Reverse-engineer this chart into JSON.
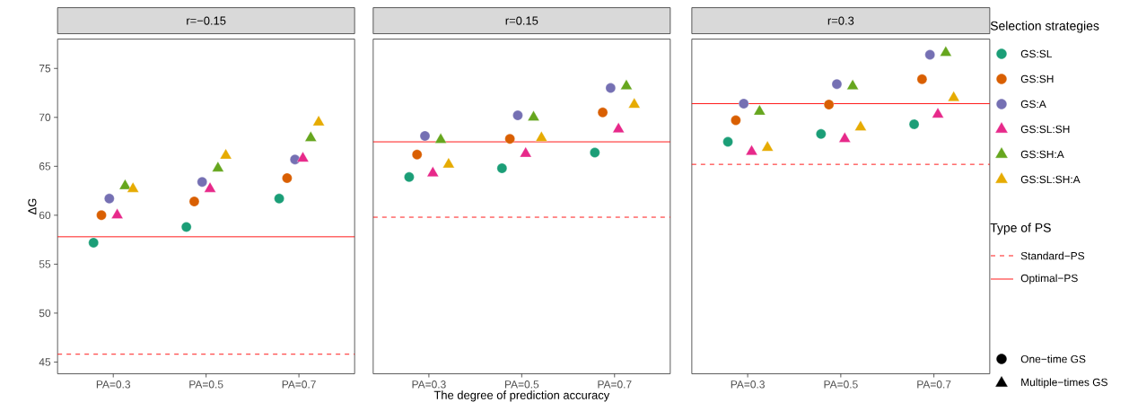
{
  "chart_data": [
    {
      "type": "scatter",
      "title": "r=−0.15",
      "ylabel": "ΔG",
      "categories": [
        "PA=0.3",
        "PA=0.5",
        "PA=0.7"
      ],
      "ylim": [
        43.8,
        78
      ],
      "yticks": [
        45,
        50,
        55,
        60,
        65,
        70,
        75
      ],
      "series": [
        {
          "color": "#1b9e77",
          "marker": "circle",
          "values": [
            57.2,
            58.8,
            61.7
          ]
        },
        {
          "color": "#d95f02",
          "marker": "circle",
          "values": [
            60.0,
            61.4,
            63.8
          ]
        },
        {
          "color": "#7570b3",
          "marker": "circle",
          "values": [
            61.7,
            63.4,
            65.7
          ]
        },
        {
          "color": "#e7298a",
          "marker": "triangle",
          "values": [
            60.0,
            62.7,
            65.8
          ]
        },
        {
          "color": "#66a61e",
          "marker": "triangle",
          "values": [
            63.0,
            64.8,
            67.9
          ]
        },
        {
          "color": "#e6ab02",
          "marker": "triangle",
          "values": [
            62.7,
            66.1,
            69.5
          ]
        }
      ],
      "ref_lines": [
        {
          "axis": "y",
          "value": 45.8,
          "color": "#ff0000",
          "line_style": "dashed"
        },
        {
          "axis": "y",
          "value": 57.8,
          "color": "#ff0000",
          "line_style": "solid"
        }
      ]
    },
    {
      "type": "scatter",
      "title": "r=0.15",
      "xlabel": "The degree of prediction accuracy",
      "categories": [
        "PA=0.3",
        "PA=0.5",
        "PA=0.7"
      ],
      "ylim": [
        43.8,
        78
      ],
      "tick_labels": "x",
      "series": [
        {
          "color": "#1b9e77",
          "marker": "circle",
          "values": [
            63.9,
            64.8,
            66.4
          ]
        },
        {
          "color": "#d95f02",
          "marker": "circle",
          "values": [
            66.2,
            67.8,
            70.5
          ]
        },
        {
          "color": "#7570b3",
          "marker": "circle",
          "values": [
            68.1,
            70.2,
            73.0
          ]
        },
        {
          "color": "#e7298a",
          "marker": "triangle",
          "values": [
            64.3,
            66.3,
            68.8
          ]
        },
        {
          "color": "#66a61e",
          "marker": "triangle",
          "values": [
            67.7,
            70.0,
            73.2
          ]
        },
        {
          "color": "#e6ab02",
          "marker": "triangle",
          "values": [
            65.2,
            67.9,
            71.3
          ]
        }
      ],
      "ref_lines": [
        {
          "axis": "y",
          "value": 59.8,
          "color": "#ff0000",
          "line_style": "dashed"
        },
        {
          "axis": "y",
          "value": 67.5,
          "color": "#ff0000",
          "line_style": "solid"
        }
      ]
    },
    {
      "type": "scatter",
      "title": "r=0.3",
      "categories": [
        "PA=0.3",
        "PA=0.5",
        "PA=0.7"
      ],
      "ylim": [
        43.8,
        78
      ],
      "tick_labels": "x",
      "legend": "right",
      "legend_title": "Selection strategies",
      "series": [
        {
          "name": "GS:SL",
          "color": "#1b9e77",
          "marker": "circle",
          "values": [
            67.5,
            68.3,
            69.3
          ]
        },
        {
          "name": "GS:SH",
          "color": "#d95f02",
          "marker": "circle",
          "values": [
            69.7,
            71.3,
            73.9
          ]
        },
        {
          "name": "GS:A",
          "color": "#7570b3",
          "marker": "circle",
          "values": [
            71.4,
            73.4,
            76.4
          ]
        },
        {
          "name": "GS:SL:SH",
          "color": "#e7298a",
          "marker": "triangle",
          "values": [
            66.5,
            67.8,
            70.3
          ]
        },
        {
          "name": "GS:SH:A",
          "color": "#66a61e",
          "marker": "triangle",
          "values": [
            70.6,
            73.2,
            76.6
          ]
        },
        {
          "name": "GS:SL:SH:A",
          "color": "#e6ab02",
          "marker": "triangle",
          "values": [
            66.9,
            69.0,
            72.0
          ]
        }
      ],
      "ref_lines": [
        {
          "axis": "y",
          "value": 65.2,
          "color": "#ff0000",
          "line_style": "dashed",
          "label": "Standard−PS"
        },
        {
          "axis": "y",
          "value": 71.4,
          "color": "#ff0000",
          "line_style": "solid",
          "label": "Optimal−PS"
        }
      ],
      "annotations": [
        "Type of PS",
        "One−time GS",
        "Multiple−times GS"
      ]
    }
  ]
}
